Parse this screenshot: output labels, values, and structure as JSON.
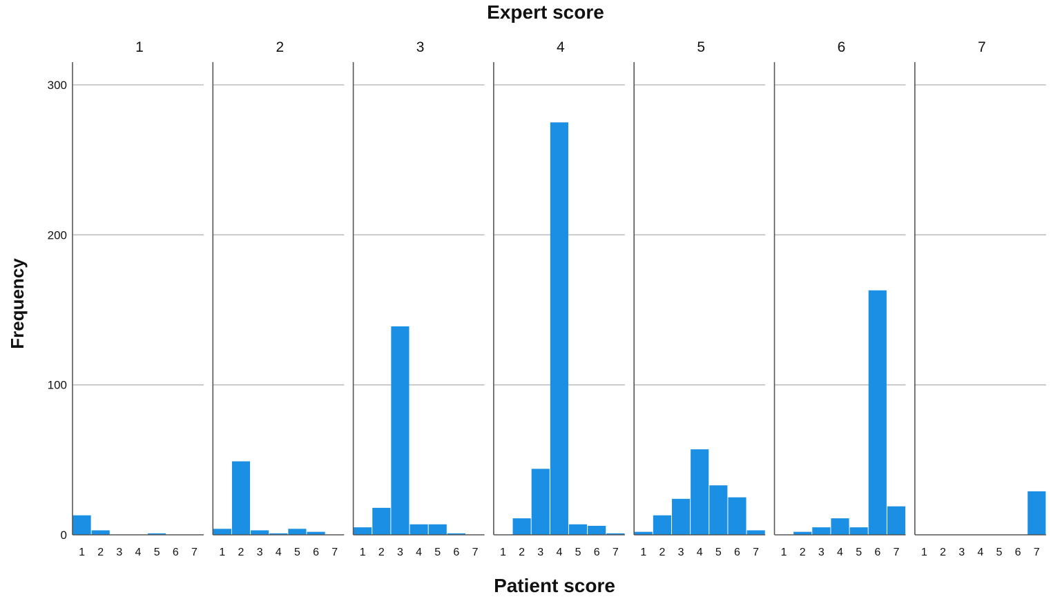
{
  "chart_data": {
    "type": "bar",
    "title": "Expert score",
    "xlabel": "Patient score",
    "ylabel": "Frequency",
    "panel_variable": "Expert score",
    "panels": [
      "1",
      "2",
      "3",
      "4",
      "5",
      "6",
      "7"
    ],
    "categories": [
      "1",
      "2",
      "3",
      "4",
      "5",
      "6",
      "7"
    ],
    "yticks": [
      "0",
      "100",
      "200",
      "300"
    ],
    "ylim": [
      0,
      300
    ],
    "grid": true,
    "bar_color": "#1a8fe3",
    "series": [
      {
        "panel": "1",
        "values": [
          13,
          3,
          0,
          0,
          1,
          0,
          0
        ]
      },
      {
        "panel": "2",
        "values": [
          4,
          49,
          3,
          1,
          4,
          2,
          0
        ]
      },
      {
        "panel": "3",
        "values": [
          5,
          18,
          139,
          7,
          7,
          1,
          0
        ]
      },
      {
        "panel": "4",
        "values": [
          0,
          11,
          44,
          275,
          7,
          6,
          1
        ]
      },
      {
        "panel": "5",
        "values": [
          2,
          13,
          24,
          57,
          33,
          25,
          3
        ]
      },
      {
        "panel": "6",
        "values": [
          0,
          2,
          5,
          11,
          5,
          163,
          19
        ]
      },
      {
        "panel": "7",
        "values": [
          0,
          0,
          0,
          0,
          0,
          0,
          29
        ]
      }
    ]
  }
}
